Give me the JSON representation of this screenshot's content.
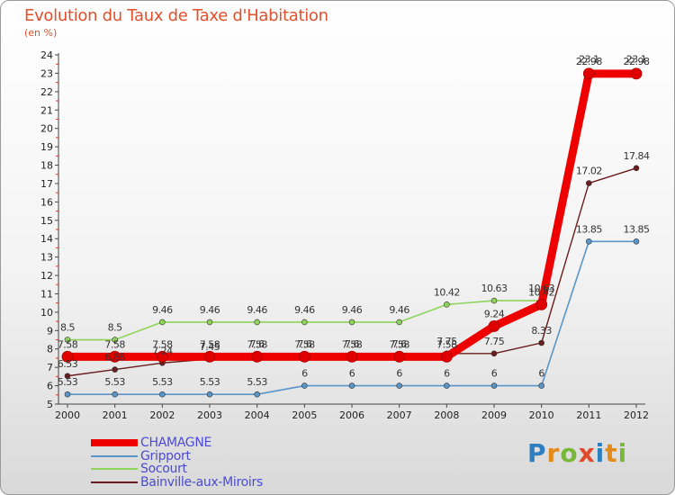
{
  "title": "Evolution du Taux de Taxe d'Habitation",
  "unit": "(en %)",
  "logo": {
    "text": "Proxiti",
    "colors": [
      "#2d7fc1",
      "#e48a1b",
      "#7ab83a",
      "#e04a2b",
      "#2d7fc1",
      "#e48a1b",
      "#7ab83a"
    ]
  },
  "chart_data": {
    "type": "line",
    "x": [
      "2000",
      "2001",
      "2002",
      "2003",
      "2004",
      "2005",
      "2006",
      "2007",
      "2008",
      "2009",
      "2010",
      "2011",
      "2012"
    ],
    "ylim": [
      5,
      24
    ],
    "yticks": [
      "5",
      "6",
      "7",
      "8",
      "9",
      "10",
      "11",
      "12",
      "13",
      "14",
      "15",
      "16",
      "17",
      "18",
      "19",
      "20",
      "21",
      "22",
      "23",
      "24"
    ],
    "grid": false,
    "legend_position": "bottom-left",
    "series": [
      {
        "name": "CHAMAGNE",
        "color": "#ee0000",
        "values": [
          7.58,
          7.58,
          7.58,
          7.58,
          7.58,
          7.58,
          7.58,
          7.58,
          7.58,
          9.24,
          10.42,
          22.98,
          22.98
        ],
        "labels": [
          "7.58",
          "7.58",
          "7.58",
          "7.58",
          "7.58",
          "7.58",
          "7.58",
          "7.58",
          "7.58",
          "9.24",
          "10.42",
          "22.98",
          "22.98"
        ]
      },
      {
        "name": "Gripport",
        "color": "#5a95c8",
        "values": [
          5.53,
          5.53,
          5.53,
          5.53,
          5.53,
          6,
          6,
          6,
          6,
          6,
          6,
          13.85,
          13.85
        ],
        "labels": [
          "5.53",
          "5.53",
          "5.53",
          "5.53",
          "5.53",
          "6",
          "6",
          "6",
          "6",
          "6",
          "6",
          "13.85",
          "13.85"
        ]
      },
      {
        "name": "Socourt",
        "color": "#8fd45a",
        "values": [
          8.5,
          8.5,
          9.46,
          9.46,
          9.46,
          9.46,
          9.46,
          9.46,
          10.42,
          10.63,
          10.63,
          23.1,
          23.1
        ],
        "labels": [
          "8.5",
          "8.5",
          "9.46",
          "9.46",
          "9.46",
          "9.46",
          "9.46",
          "9.46",
          "10.42",
          "10.63",
          "10.63",
          "23.1",
          "23.1"
        ]
      },
      {
        "name": "Bainville-aux-Miroirs",
        "color": "#6b1c1c",
        "values": [
          6.53,
          6.88,
          7.24,
          7.45,
          7.6,
          7.6,
          7.6,
          7.6,
          7.75,
          7.75,
          8.33,
          17.02,
          17.84
        ],
        "labels": [
          "6.53",
          "6.88",
          "7.24",
          "7.45",
          "7.6",
          "7.6",
          "7.6",
          "7.6",
          "7.75",
          "7.75",
          "8.33",
          "17.02",
          "17.84"
        ]
      }
    ]
  }
}
